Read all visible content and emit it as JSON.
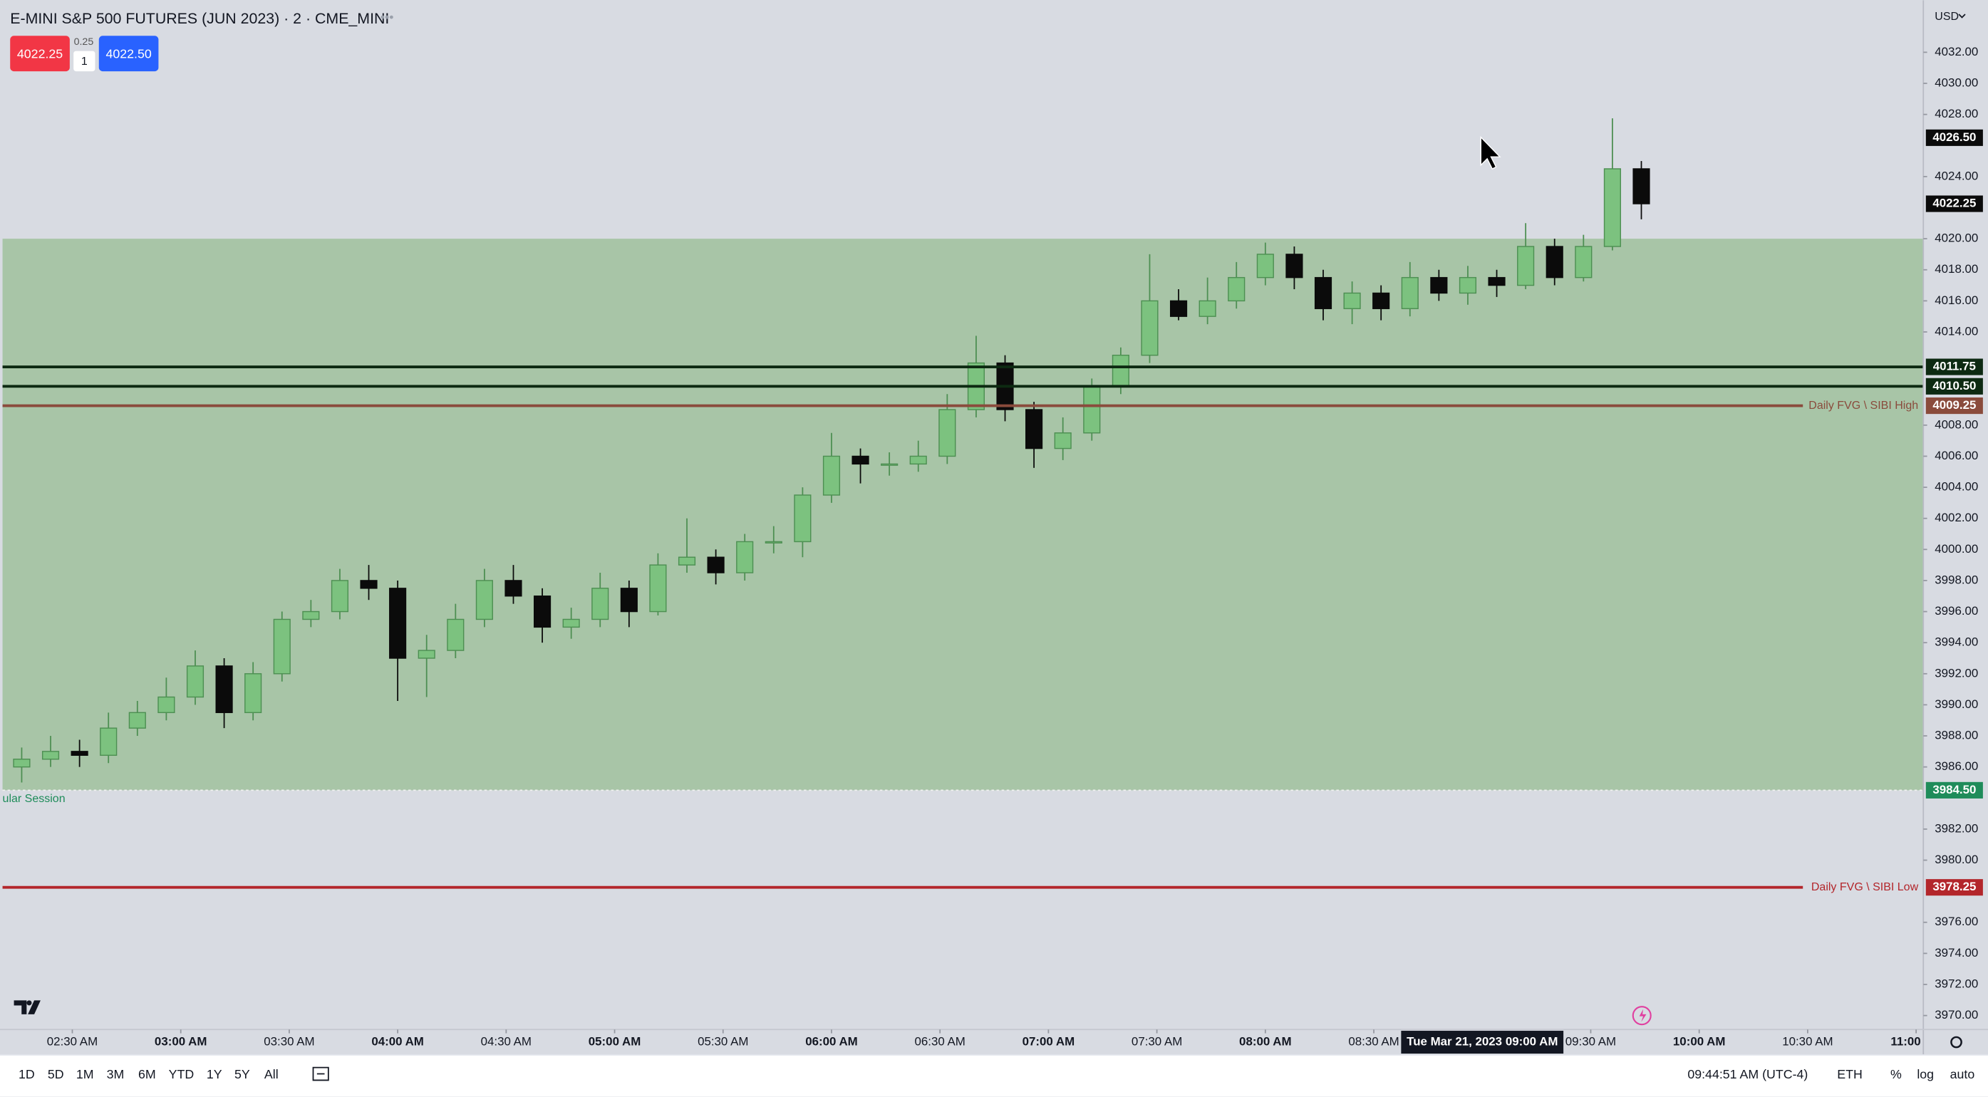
{
  "header": {
    "title": "E-MINI S&P 500 FUTURES (JUN 2023) · 2 · CME_MINI",
    "bid": "4022.25",
    "spread": "0.25",
    "qty": "1",
    "ask": "4022.50"
  },
  "footer": {
    "ranges": [
      "1D",
      "5D",
      "1M",
      "3M",
      "6M",
      "YTD",
      "1Y",
      "5Y",
      "All"
    ],
    "clock": "09:44:51 AM (UTC-4)",
    "session": "ETH",
    "percent": "%",
    "log": "log",
    "auto": "auto"
  },
  "chart_data": {
    "type": "candlestick",
    "currency": "USD",
    "up_color": "#7cc27f",
    "up_edge": "#4d8f52",
    "down_color": "#0b0b0b",
    "grid": false,
    "xlim": [
      130.7,
      662
    ],
    "ylim": [
      3969.1,
      4035.1
    ],
    "xticks": [
      {
        "value": 150,
        "label": "02:30 AM"
      },
      {
        "value": 180,
        "label": "03:00 AM"
      },
      {
        "value": 210,
        "label": "03:30 AM"
      },
      {
        "value": 240,
        "label": "04:00 AM"
      },
      {
        "value": 270,
        "label": "04:30 AM"
      },
      {
        "value": 300,
        "label": "05:00 AM"
      },
      {
        "value": 330,
        "label": "05:30 AM"
      },
      {
        "value": 360,
        "label": "06:00 AM"
      },
      {
        "value": 390,
        "label": "06:30 AM"
      },
      {
        "value": 420,
        "label": "07:00 AM"
      },
      {
        "value": 450,
        "label": "07:30 AM"
      },
      {
        "value": 480,
        "label": "08:00 AM"
      },
      {
        "value": 510,
        "label": "08:30 AM"
      },
      {
        "value": 570,
        "label": "09:30 AM"
      },
      {
        "value": 600,
        "label": "10:00 AM"
      },
      {
        "value": 630,
        "label": "10:30 AM"
      },
      {
        "value": 660,
        "label": "11:00"
      }
    ],
    "yticks": [
      {
        "value": 3970,
        "label": "3970.00"
      },
      {
        "value": 3972,
        "label": "3972.00"
      },
      {
        "value": 3974,
        "label": "3974.00"
      },
      {
        "value": 3976,
        "label": "3976.00"
      },
      {
        "value": 3980,
        "label": "3980.00"
      },
      {
        "value": 3982,
        "label": "3982.00"
      },
      {
        "value": 3986,
        "label": "3986.00"
      },
      {
        "value": 3988,
        "label": "3988.00"
      },
      {
        "value": 3990,
        "label": "3990.00"
      },
      {
        "value": 3992,
        "label": "3992.00"
      },
      {
        "value": 3994,
        "label": "3994.00"
      },
      {
        "value": 3996,
        "label": "3996.00"
      },
      {
        "value": 3998,
        "label": "3998.00"
      },
      {
        "value": 4000,
        "label": "4000.00"
      },
      {
        "value": 4002,
        "label": "4002.00"
      },
      {
        "value": 4004,
        "label": "4004.00"
      },
      {
        "value": 4006,
        "label": "4006.00"
      },
      {
        "value": 4008,
        "label": "4008.00"
      },
      {
        "value": 4014,
        "label": "4014.00"
      },
      {
        "value": 4016,
        "label": "4016.00"
      },
      {
        "value": 4018,
        "label": "4018.00"
      },
      {
        "value": 4020,
        "label": "4020.00"
      },
      {
        "value": 4024,
        "label": "4024.00"
      },
      {
        "value": 4028,
        "label": "4028.00"
      },
      {
        "value": 4030,
        "label": "4030.00"
      },
      {
        "value": 4032,
        "label": "4032.00"
      }
    ],
    "x": [
      136,
      144,
      152,
      160,
      168,
      176,
      184,
      192,
      200,
      208,
      216,
      224,
      232,
      240,
      248,
      256,
      264,
      272,
      280,
      288,
      296,
      304,
      312,
      320,
      328,
      336,
      344,
      352,
      360,
      368,
      376,
      384,
      392,
      400,
      408,
      416,
      424,
      432,
      440,
      448,
      456,
      464,
      472,
      480,
      488,
      496,
      504,
      512,
      520,
      528,
      536,
      544,
      552,
      560,
      568,
      576,
      584
    ],
    "open": [
      3986,
      3986.5,
      3987,
      3986.75,
      3988.5,
      3989.5,
      3990.5,
      3992.5,
      3989.5,
      3992,
      3995.5,
      3996,
      3998,
      3997.5,
      3993,
      3993.5,
      3995.5,
      3998,
      3997,
      3995,
      3995.5,
      3997.5,
      3996,
      3999,
      3999.5,
      3998.5,
      4000.5,
      4000.5,
      4003.5,
      4006,
      4005.5,
      4005.5,
      4006,
      4009,
      4012,
      4009,
      4006.5,
      4007.5,
      4010.5,
      4012.5,
      4016,
      4015,
      4016,
      4017.5,
      4019,
      4017.5,
      4015.5,
      4016.5,
      4015.5,
      4017.5,
      4016.5,
      4017.5,
      4017,
      4019.5,
      4017.5,
      4019.5,
      4024.5
    ],
    "high": [
      3987.25,
      3988,
      3987.75,
      3989.5,
      3990.25,
      3991.75,
      3993.5,
      3993,
      3992.75,
      3996,
      3996.75,
      3998.75,
      3999,
      3998,
      3994.5,
      3996.5,
      3998.75,
      3999,
      3997.5,
      3996.25,
      3998.5,
      3998,
      3999.75,
      4002,
      4000,
      4001,
      4001.5,
      4004,
      4007.5,
      4006.5,
      4006.25,
      4007,
      4010,
      4013.75,
      4012.5,
      4009.5,
      4008.5,
      4011,
      4013,
      4019,
      4016.75,
      4017.5,
      4018.5,
      4019.75,
      4019.5,
      4018,
      4017.25,
      4017,
      4018.5,
      4018,
      4018.25,
      4018,
      4021,
      4020,
      4020.25,
      4027.75,
      4025
    ],
    "low": [
      3985,
      3986,
      3986,
      3986.25,
      3988,
      3989,
      3990,
      3988.5,
      3989,
      3991.5,
      3995,
      3995.5,
      3996.75,
      3990.25,
      3990.5,
      3993,
      3995,
      3996.5,
      3994,
      3994.25,
      3995,
      3995,
      3995.75,
      3998.5,
      3997.75,
      3998,
      3999.75,
      3999.5,
      4003,
      4004.25,
      4004.75,
      4005,
      4005.5,
      4008.5,
      4008.25,
      4005.25,
      4005.75,
      4007,
      4010,
      4012,
      4014.75,
      4014.5,
      4015.5,
      4017,
      4016.75,
      4014.75,
      4014.5,
      4014.75,
      4015,
      4016,
      4015.75,
      4016.25,
      4016.75,
      4017,
      4017.25,
      4019.25,
      4021.25
    ],
    "close": [
      3986.5,
      3987,
      3986.75,
      3988.5,
      3989.5,
      3990.5,
      3992.5,
      3989.5,
      3992,
      3995.5,
      3996,
      3998,
      3997.5,
      3993,
      3993.5,
      3995.5,
      3998,
      3997,
      3995,
      3995.5,
      3997.5,
      3996,
      3999,
      3999.5,
      3998.5,
      4000.5,
      4000.5,
      4003.5,
      4006,
      4005.5,
      4005.5,
      4006,
      4009,
      4012,
      4009,
      4006.5,
      4007.5,
      4010.5,
      4012.5,
      4016,
      4015,
      4016,
      4017.5,
      4019,
      4017.5,
      4015.5,
      4016.5,
      4015.5,
      4017.5,
      4016.5,
      4017.5,
      4017,
      4019.5,
      4017.5,
      4019.5,
      4024.5,
      4022.25
    ],
    "zone": {
      "top": 4020,
      "bottom": 3984.5,
      "value_label": "3984.50",
      "label": "ular Session",
      "color": "#a8c5a7",
      "label_color": "#1f8c5a"
    },
    "levels": {
      "values": [
        4011.75,
        4010.5,
        4009.25,
        3978.25
      ],
      "value_labels": [
        "4011.75",
        "4010.50",
        "4009.25",
        "3978.25"
      ],
      "names": [
        null,
        null,
        "Daily FVG \\ SIBI High",
        "Daily FVG \\ SIBI Low"
      ],
      "colors": [
        "#0d2a12",
        "#0d2a12",
        "#8a4b3c",
        "#b3262b"
      ]
    },
    "price_marks": {
      "values": [
        4026.5,
        4022.25
      ],
      "value_labels": [
        "4026.50",
        "4022.25"
      ]
    },
    "crosshair": {
      "x": 540,
      "label_date": "Tue Mar 21, 2023",
      "label_time": "09:00 AM"
    }
  }
}
